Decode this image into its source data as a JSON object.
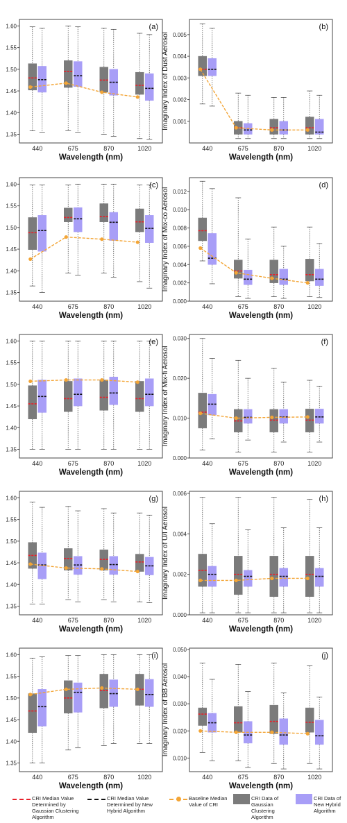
{
  "wavelengths": [
    "440",
    "675",
    "870",
    "1020"
  ],
  "xlabel": "Wavelength (nm)",
  "colors": {
    "gaussian_box": "#7b7b7b",
    "hybrid_box": "#a89ef7",
    "gaussian_median": "#e8202a",
    "hybrid_median": "#111111",
    "baseline": "#f3a536"
  },
  "legend": {
    "gaussian_median": "CRI Median Value Determined by Gaussian  Clustering Algorithm",
    "hybrid_median": "CRI Median Value Determined by New Hybrid Algorithm",
    "baseline": "Baseline Median Value of CRI",
    "gaussian_box": "CRI Data of Gaussian Clustering Algorithm",
    "hybrid_box": "CRI Data of New Hybrid Algorithm"
  },
  "chart_data": [
    {
      "type": "box",
      "panel": "(a)",
      "ylabel": "Real Index of Dust Aerosol",
      "ylim": [
        1.33,
        1.615
      ],
      "yticks": [
        "1.35",
        "1.40",
        "1.45",
        "1.50",
        "1.55",
        "1.60"
      ],
      "gaussian": {
        "q1": [
          1.452,
          1.458,
          1.447,
          1.442
        ],
        "median": [
          1.48,
          1.495,
          1.475,
          1.463
        ],
        "q3": [
          1.513,
          1.52,
          1.505,
          1.493
        ],
        "min": [
          1.358,
          1.358,
          1.35,
          1.34
        ],
        "max": [
          1.598,
          1.6,
          1.595,
          1.583
        ]
      },
      "hybrid": {
        "q1": [
          1.447,
          1.46,
          1.44,
          1.428
        ],
        "median": [
          1.476,
          1.485,
          1.47,
          1.456
        ],
        "q3": [
          1.507,
          1.518,
          1.5,
          1.49
        ],
        "min": [
          1.355,
          1.355,
          1.345,
          1.338
        ],
        "max": [
          1.595,
          1.598,
          1.592,
          1.58
        ]
      },
      "baseline": [
        1.459,
        1.468,
        1.447,
        1.436
      ]
    },
    {
      "type": "box",
      "panel": "(b)",
      "ylabel": "Imaginary Index of Dust Aerosol",
      "ylim": [
        0,
        0.0057
      ],
      "yticks": [
        "0.001",
        "0.002",
        "0.003",
        "0.004",
        "0.005"
      ],
      "gaussian": {
        "q1": [
          0.0031,
          0.0004,
          0.0004,
          0.0004
        ],
        "median": [
          0.0034,
          0.0007,
          0.0007,
          0.0007
        ],
        "q3": [
          0.004,
          0.001,
          0.0011,
          0.0012
        ],
        "min": [
          0.0018,
          0.0002,
          0.0002,
          0.0002
        ],
        "max": [
          0.0055,
          0.0023,
          0.0021,
          0.0024
        ]
      },
      "hybrid": {
        "q1": [
          0.0031,
          0.0004,
          0.0004,
          0.0004
        ],
        "median": [
          0.0034,
          0.0006,
          0.0006,
          0.0005
        ],
        "q3": [
          0.0039,
          0.0009,
          0.001,
          0.0011
        ],
        "min": [
          0.0017,
          0.0002,
          0.0002,
          0.0002
        ],
        "max": [
          0.0053,
          0.0022,
          0.0021,
          0.0022
        ]
      },
      "baseline": [
        0.0034,
        0.0007,
        0.0006,
        0.0006
      ]
    },
    {
      "type": "box",
      "panel": "(c)",
      "ylabel": "Real Index of Mix-co Aerosol",
      "ylim": [
        1.33,
        1.615
      ],
      "yticks": [
        "1.35",
        "1.40",
        "1.45",
        "1.50",
        "1.55",
        "1.60"
      ],
      "gaussian": {
        "q1": [
          1.449,
          1.513,
          1.513,
          1.49
        ],
        "median": [
          1.488,
          1.523,
          1.525,
          1.513
        ],
        "q3": [
          1.523,
          1.545,
          1.555,
          1.543
        ],
        "min": [
          1.365,
          1.395,
          1.395,
          1.375
        ],
        "max": [
          1.598,
          1.598,
          1.6,
          1.598
        ]
      },
      "hybrid": {
        "q1": [
          1.445,
          1.49,
          1.47,
          1.465
        ],
        "median": [
          1.493,
          1.52,
          1.512,
          1.498
        ],
        "q3": [
          1.528,
          1.546,
          1.535,
          1.528
        ],
        "min": [
          1.35,
          1.39,
          1.385,
          1.36
        ],
        "max": [
          1.598,
          1.6,
          1.6,
          1.598
        ]
      },
      "baseline": [
        1.427,
        1.478,
        1.473,
        1.466
      ]
    },
    {
      "type": "box",
      "panel": "(d)",
      "ylabel": "Imaginary Index of Mix-co Aerosol",
      "ylim": [
        0,
        0.0135
      ],
      "yticks": [
        "0.000",
        "0.002",
        "0.004",
        "0.006",
        "0.008",
        "0.010",
        "0.012"
      ],
      "gaussian": {
        "q1": [
          0.0066,
          0.0025,
          0.002,
          0.0022
        ],
        "median": [
          0.0077,
          0.0033,
          0.0029,
          0.0029
        ],
        "q3": [
          0.0091,
          0.0045,
          0.0045,
          0.0046
        ],
        "min": [
          0.0044,
          0.0005,
          0.0005,
          0.0005
        ],
        "max": [
          0.0131,
          0.0113,
          0.0081,
          0.0081
        ]
      },
      "hybrid": {
        "q1": [
          0.004,
          0.0018,
          0.0018,
          0.0017
        ],
        "median": [
          0.0047,
          0.0024,
          0.0024,
          0.0024
        ],
        "q3": [
          0.0074,
          0.0034,
          0.0035,
          0.0035
        ],
        "min": [
          0.0019,
          0.0003,
          0.0003,
          0.0004
        ],
        "max": [
          0.0123,
          0.0068,
          0.006,
          0.0063
        ]
      },
      "baseline": [
        0.0058,
        0.0031,
        0.0025,
        0.002
      ]
    },
    {
      "type": "box",
      "panel": "(e)",
      "ylabel": "Real Index of Mix-fi Aerosol",
      "ylim": [
        1.33,
        1.615
      ],
      "yticks": [
        "1.35",
        "1.40",
        "1.45",
        "1.50",
        "1.55",
        "1.60"
      ],
      "gaussian": {
        "q1": [
          1.42,
          1.437,
          1.44,
          1.437
        ],
        "median": [
          1.455,
          1.467,
          1.47,
          1.467
        ],
        "q3": [
          1.497,
          1.507,
          1.51,
          1.507
        ],
        "min": [
          1.35,
          1.35,
          1.35,
          1.35
        ],
        "max": [
          1.6,
          1.6,
          1.6,
          1.6
        ]
      },
      "hybrid": {
        "q1": [
          1.435,
          1.45,
          1.453,
          1.45
        ],
        "median": [
          1.472,
          1.477,
          1.48,
          1.477
        ],
        "q3": [
          1.51,
          1.513,
          1.517,
          1.513
        ],
        "min": [
          1.35,
          1.35,
          1.35,
          1.35
        ],
        "max": [
          1.6,
          1.6,
          1.6,
          1.6
        ]
      },
      "baseline": [
        1.507,
        1.51,
        1.51,
        1.505
      ]
    },
    {
      "type": "box",
      "panel": "(f)",
      "ylabel": "Imaginary Index of Mix-fi Aerosol",
      "ylim": [
        0,
        0.031
      ],
      "yticks": [
        "0.000",
        "0.010",
        "0.020",
        "0.030"
      ],
      "gaussian": {
        "q1": [
          0.0075,
          0.0065,
          0.0065,
          0.0065
        ],
        "median": [
          0.0115,
          0.0093,
          0.0095,
          0.0095
        ],
        "q3": [
          0.0163,
          0.0122,
          0.0122,
          0.0123
        ],
        "min": [
          0.002,
          0.0015,
          0.0015,
          0.0015
        ],
        "max": [
          0.03,
          0.0245,
          0.0225,
          0.0195
        ]
      },
      "hybrid": {
        "q1": [
          0.0108,
          0.0087,
          0.0087,
          0.0087
        ],
        "median": [
          0.0135,
          0.0102,
          0.0103,
          0.0103
        ],
        "q3": [
          0.016,
          0.0122,
          0.0122,
          0.0123
        ],
        "min": [
          0.0048,
          0.0045,
          0.004,
          0.004
        ],
        "max": [
          0.025,
          0.02,
          0.019,
          0.018
        ]
      },
      "baseline": [
        0.0112,
        0.01,
        0.0102,
        0.0103
      ]
    },
    {
      "type": "box",
      "panel": "(g)",
      "ylabel": "Real Index of U/I Aerosol",
      "ylim": [
        1.33,
        1.615
      ],
      "yticks": [
        "1.35",
        "1.40",
        "1.45",
        "1.50",
        "1.55",
        "1.60"
      ],
      "gaussian": {
        "q1": [
          1.437,
          1.433,
          1.433,
          1.43
        ],
        "median": [
          1.467,
          1.46,
          1.458,
          1.452
        ],
        "q3": [
          1.497,
          1.483,
          1.48,
          1.47
        ],
        "min": [
          1.355,
          1.365,
          1.365,
          1.36
        ],
        "max": [
          1.59,
          1.58,
          1.575,
          1.565
        ]
      },
      "hybrid": {
        "q1": [
          1.413,
          1.423,
          1.423,
          1.422
        ],
        "median": [
          1.445,
          1.445,
          1.446,
          1.443
        ],
        "q3": [
          1.473,
          1.465,
          1.465,
          1.463
        ],
        "min": [
          1.355,
          1.36,
          1.36,
          1.358
        ],
        "max": [
          1.578,
          1.57,
          1.565,
          1.56
        ]
      },
      "baseline": [
        1.447,
        1.438,
        1.436,
        1.43
      ]
    },
    {
      "type": "box",
      "panel": "(h)",
      "ylabel": "Imaginary Index of U/I Aerosol",
      "ylim": [
        0,
        0.0061
      ],
      "yticks": [
        "0.000",
        "0.002",
        "0.004",
        "0.006"
      ],
      "gaussian": {
        "q1": [
          0.0014,
          0.001,
          0.0009,
          0.0009
        ],
        "median": [
          0.0022,
          0.002,
          0.002,
          0.002
        ],
        "q3": [
          0.003,
          0.0029,
          0.0029,
          0.0029
        ],
        "min": [
          0.0001,
          0.0001,
          0.0001,
          0.0001
        ],
        "max": [
          0.0058,
          0.0058,
          0.0058,
          0.0057
        ]
      },
      "hybrid": {
        "q1": [
          0.0014,
          0.0014,
          0.0014,
          0.0014
        ],
        "median": [
          0.002,
          0.0019,
          0.0019,
          0.0019
        ],
        "q3": [
          0.0024,
          0.0022,
          0.0023,
          0.0023
        ],
        "min": [
          0.0001,
          0.0001,
          0.0001,
          0.0001
        ],
        "max": [
          0.0045,
          0.0042,
          0.0043,
          0.0043
        ]
      },
      "baseline": [
        0.0017,
        0.0017,
        0.0018,
        0.0018
      ]
    },
    {
      "type": "box",
      "panel": "(i)",
      "ylabel": "Real Index of BB Aerosol",
      "ylim": [
        1.33,
        1.615
      ],
      "yticks": [
        "1.35",
        "1.40",
        "1.45",
        "1.50",
        "1.55",
        "1.60"
      ],
      "gaussian": {
        "q1": [
          1.42,
          1.465,
          1.477,
          1.483
        ],
        "median": [
          1.47,
          1.5,
          1.517,
          1.52
        ],
        "q3": [
          1.51,
          1.54,
          1.555,
          1.555
        ],
        "min": [
          1.35,
          1.38,
          1.39,
          1.395
        ],
        "max": [
          1.592,
          1.598,
          1.6,
          1.6
        ]
      },
      "hybrid": {
        "q1": [
          1.435,
          1.467,
          1.48,
          1.48
        ],
        "median": [
          1.48,
          1.513,
          1.51,
          1.508
        ],
        "q3": [
          1.52,
          1.535,
          1.542,
          1.543
        ],
        "min": [
          1.35,
          1.385,
          1.395,
          1.395
        ],
        "max": [
          1.595,
          1.598,
          1.6,
          1.6
        ]
      },
      "baseline": [
        1.508,
        1.52,
        1.523,
        1.52
      ]
    },
    {
      "type": "box",
      "panel": "(j)",
      "ylabel": "Imaginary Index of BB Aerosol",
      "ylim": [
        0.005,
        0.0505
      ],
      "yticks": [
        "0.010",
        "0.020",
        "0.030",
        "0.040",
        "0.050"
      ],
      "gaussian": {
        "q1": [
          0.022,
          0.0195,
          0.019,
          0.0195
        ],
        "median": [
          0.0262,
          0.023,
          0.0235,
          0.0232
        ],
        "q3": [
          0.0285,
          0.029,
          0.0295,
          0.0285
        ],
        "min": [
          0.012,
          0.009,
          0.008,
          0.008
        ],
        "max": [
          0.045,
          0.0445,
          0.045,
          0.044
        ]
      },
      "hybrid": {
        "q1": [
          0.0195,
          0.0155,
          0.015,
          0.015
        ],
        "median": [
          0.023,
          0.0185,
          0.0185,
          0.0182
        ],
        "q3": [
          0.0265,
          0.0235,
          0.0245,
          0.024
        ],
        "min": [
          0.009,
          0.0065,
          0.006,
          0.006
        ],
        "max": [
          0.039,
          0.0345,
          0.034,
          0.0325
        ]
      },
      "baseline": [
        0.02,
        0.0195,
        0.0195,
        0.019
      ]
    }
  ]
}
